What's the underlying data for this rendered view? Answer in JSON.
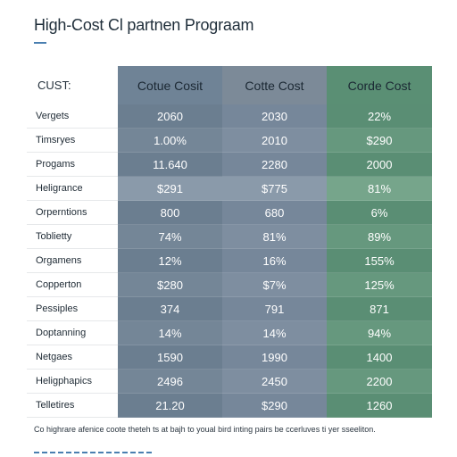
{
  "title": "High-Cost Cl partnen Prograam",
  "table": {
    "corner_label": "CUST:",
    "columns": [
      "Cotue Cosit",
      "Cotte Cost",
      "Corde Cost"
    ],
    "rows": [
      {
        "label": "Vergets",
        "values": [
          "2060",
          "2030",
          "22%"
        ]
      },
      {
        "label": "Timsryes",
        "values": [
          "1.00%",
          "2010",
          "$290"
        ]
      },
      {
        "label": "Progams",
        "values": [
          "11.640",
          "2280",
          "2000"
        ]
      },
      {
        "label": "Heligrance",
        "values": [
          "$291",
          "$775",
          "81%"
        ]
      },
      {
        "label": "Orperntions",
        "values": [
          "800",
          "680",
          "6%"
        ]
      },
      {
        "label": "Toblietty",
        "values": [
          "74%",
          "81%",
          "89%"
        ]
      },
      {
        "label": "Orgamens",
        "values": [
          "12%",
          "16%",
          "155%"
        ]
      },
      {
        "label": "Copperton",
        "values": [
          "$280",
          "$7%",
          "125%"
        ]
      },
      {
        "label": "Pessiples",
        "values": [
          "374",
          "791",
          "871"
        ]
      },
      {
        "label": "Doptanning",
        "values": [
          "14%",
          "14%",
          "94%"
        ]
      },
      {
        "label": "Netgaes",
        "values": [
          "1590",
          "1990",
          "1400"
        ]
      },
      {
        "label": "Heligphapics",
        "values": [
          "2496",
          "2450",
          "2200"
        ]
      },
      {
        "label": "Telletires",
        "values": [
          "21.20",
          "$290",
          "1260"
        ]
      }
    ]
  },
  "footnote": "Co highrare afenice coote theteh ts at bajh to youal bird inting pairs be ccerluves ti yer sseeliton.",
  "colors": {
    "header_blue": "#6f8396",
    "header_slate": "#7c8a98",
    "header_green": "#5a8f74",
    "accent": "#4a7fb0"
  }
}
